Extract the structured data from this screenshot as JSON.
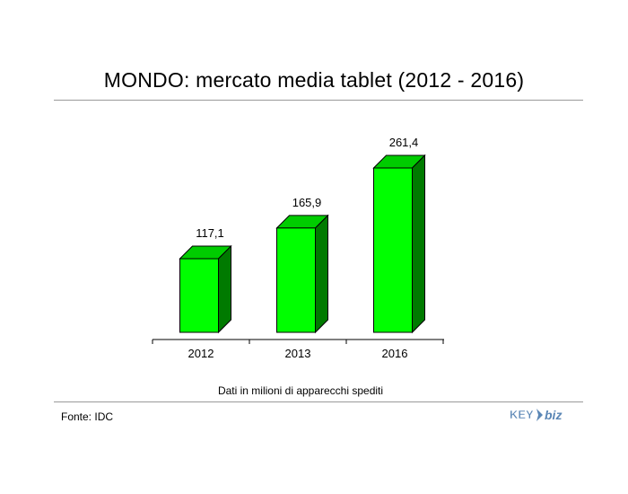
{
  "title": "MONDO: mercato media tablet (2012 - 2016)",
  "note": "Dati in milioni di apparecchi spediti",
  "source": "Fonte: IDC",
  "logo": {
    "text_left": "KEY",
    "text_right": "biz",
    "color": "#5a86b5"
  },
  "colors": {
    "bar_front": "#00ff00",
    "bar_side": "#007a00",
    "bar_top": "#00cc00"
  },
  "chart_data": {
    "type": "bar",
    "title": "MONDO: mercato media tablet (2012 - 2016)",
    "xlabel": "Dati in milioni di apparecchi spediti",
    "ylabel": "",
    "categories": [
      "2012",
      "2013",
      "2016"
    ],
    "values": [
      117.1,
      165.9,
      261.4
    ],
    "value_labels": [
      "117,1",
      "165,9",
      "261,4"
    ],
    "ylim": [
      0,
      261.4
    ],
    "grid": false,
    "legend": "none"
  }
}
